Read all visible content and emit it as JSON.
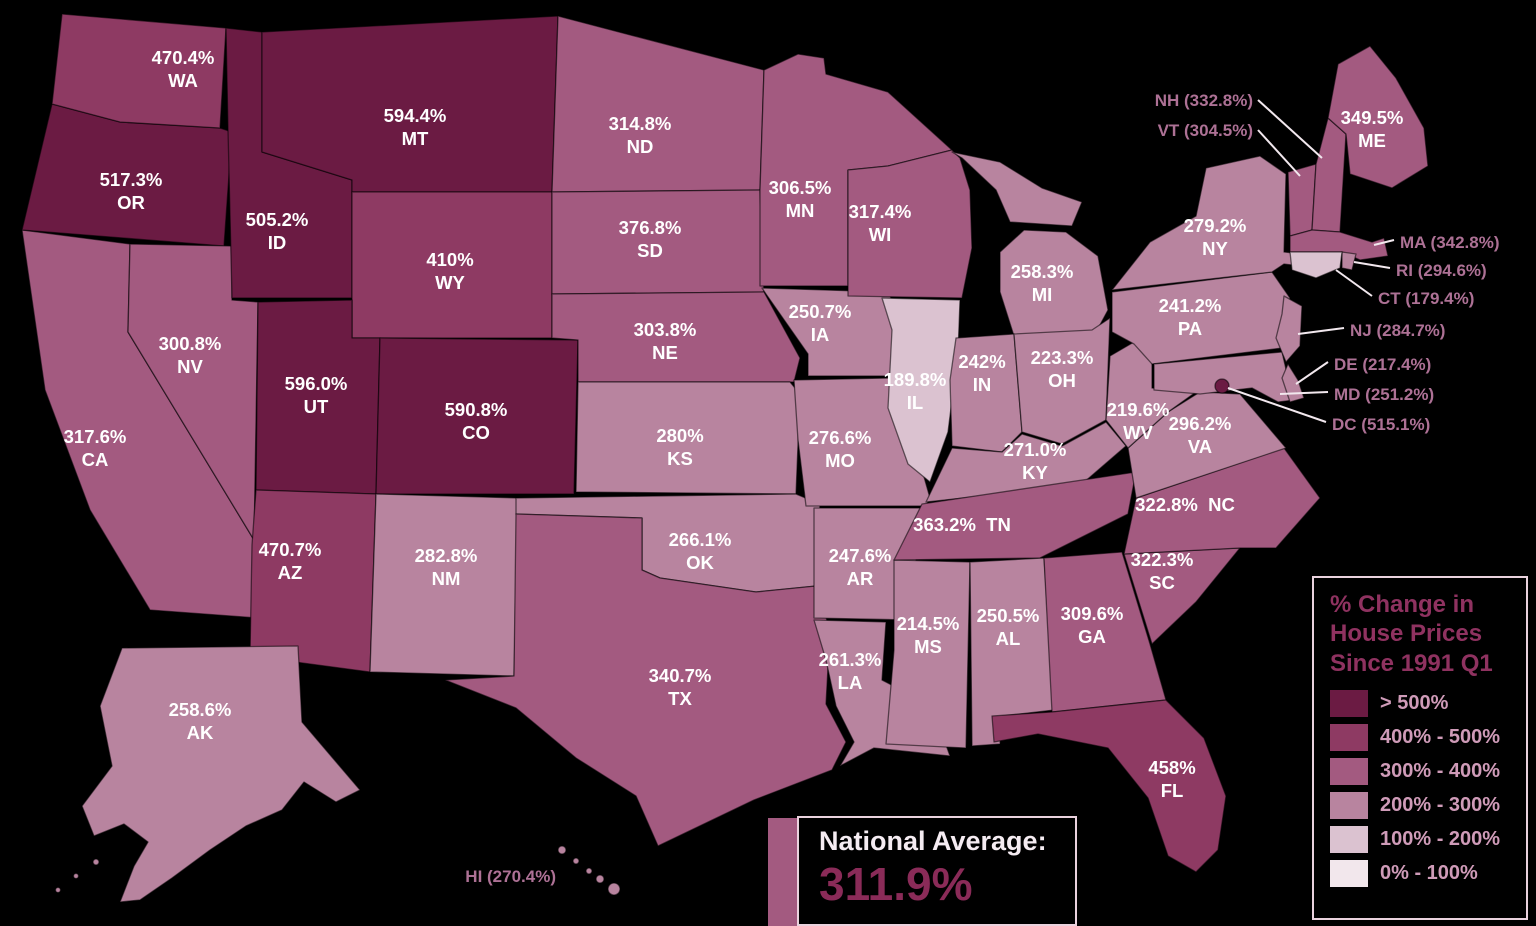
{
  "title": "% Change in House Prices Since 1991 Q1",
  "colors": {
    "background": "#000000",
    "state_border": "rgba(0,0,0,0.55)",
    "state_label": "#ffffff",
    "callout_label": "#ad7195",
    "callout_line": "#f2e8ee",
    "box_border": "#ead2de",
    "legend_title": "#8f3260",
    "legend_label": "#cf9bb8",
    "national_label": "#f5ecf2",
    "national_value": "#8a2b58",
    "accent_bar": "#a35a80"
  },
  "legend": {
    "title": "% Change in House Prices Since 1991 Q1",
    "buckets": [
      {
        "label": "> 500%",
        "min": 500,
        "color": "#6b1b43"
      },
      {
        "label": "400% - 500%",
        "min": 400,
        "color": "#8e3a63"
      },
      {
        "label": "300% - 400%",
        "min": 300,
        "color": "#a35a80"
      },
      {
        "label": "200% - 300%",
        "min": 200,
        "color": "#b8849f"
      },
      {
        "label": "100% - 200%",
        "min": 100,
        "color": "#dbc2d0"
      },
      {
        "label": "0% - 100%",
        "min": 0,
        "color": "#f2e7ec"
      }
    ]
  },
  "national_average": {
    "label": "National Average:",
    "value": "311.9%"
  },
  "states": [
    {
      "abbr": "WA",
      "value": "470.4%"
    },
    {
      "abbr": "OR",
      "value": "517.3%"
    },
    {
      "abbr": "CA",
      "value": "317.6%"
    },
    {
      "abbr": "NV",
      "value": "300.8%"
    },
    {
      "abbr": "ID",
      "value": "505.2%"
    },
    {
      "abbr": "MT",
      "value": "594.4%"
    },
    {
      "abbr": "WY",
      "value": "410%"
    },
    {
      "abbr": "UT",
      "value": "596.0%"
    },
    {
      "abbr": "CO",
      "value": "590.8%"
    },
    {
      "abbr": "AZ",
      "value": "470.7%"
    },
    {
      "abbr": "NM",
      "value": "282.8%"
    },
    {
      "abbr": "ND",
      "value": "314.8%"
    },
    {
      "abbr": "SD",
      "value": "376.8%"
    },
    {
      "abbr": "NE",
      "value": "303.8%"
    },
    {
      "abbr": "KS",
      "value": "280%"
    },
    {
      "abbr": "OK",
      "value": "266.1%"
    },
    {
      "abbr": "TX",
      "value": "340.7%"
    },
    {
      "abbr": "MN",
      "value": "306.5%"
    },
    {
      "abbr": "IA",
      "value": "250.7%"
    },
    {
      "abbr": "MO",
      "value": "276.6%"
    },
    {
      "abbr": "AR",
      "value": "247.6%"
    },
    {
      "abbr": "LA",
      "value": "261.3%"
    },
    {
      "abbr": "WI",
      "value": "317.4%"
    },
    {
      "abbr": "IL",
      "value": "189.8%"
    },
    {
      "abbr": "MS",
      "value": "214.5%"
    },
    {
      "abbr": "MI",
      "value": "258.3%"
    },
    {
      "abbr": "IN",
      "value": "242%"
    },
    {
      "abbr": "OH",
      "value": "223.3%"
    },
    {
      "abbr": "KY",
      "value": "271.0%"
    },
    {
      "abbr": "TN",
      "value": "363.2%",
      "inline": true
    },
    {
      "abbr": "AL",
      "value": "250.5%"
    },
    {
      "abbr": "GA",
      "value": "309.6%"
    },
    {
      "abbr": "FL",
      "value": "458%"
    },
    {
      "abbr": "SC",
      "value": "322.3%"
    },
    {
      "abbr": "NC",
      "value": "322.8%",
      "inline": true
    },
    {
      "abbr": "VA",
      "value": "296.2%"
    },
    {
      "abbr": "WV",
      "value": "219.6%"
    },
    {
      "abbr": "PA",
      "value": "241.2%"
    },
    {
      "abbr": "NY",
      "value": "279.2%"
    },
    {
      "abbr": "ME",
      "value": "349.5%"
    },
    {
      "abbr": "VT",
      "value": "304.5%",
      "callout": true
    },
    {
      "abbr": "NH",
      "value": "332.8%",
      "callout": true
    },
    {
      "abbr": "MA",
      "value": "342.8%",
      "callout": true
    },
    {
      "abbr": "RI",
      "value": "294.6%",
      "callout": true
    },
    {
      "abbr": "CT",
      "value": "179.4%",
      "callout": true
    },
    {
      "abbr": "NJ",
      "value": "284.7%",
      "callout": true
    },
    {
      "abbr": "DE",
      "value": "217.4%",
      "callout": true
    },
    {
      "abbr": "MD",
      "value": "251.2%",
      "callout": true
    },
    {
      "abbr": "DC",
      "value": "515.1%",
      "callout": true
    },
    {
      "abbr": "AK",
      "value": "258.6%"
    },
    {
      "abbr": "HI",
      "value": "270.4%",
      "callout": true
    }
  ]
}
